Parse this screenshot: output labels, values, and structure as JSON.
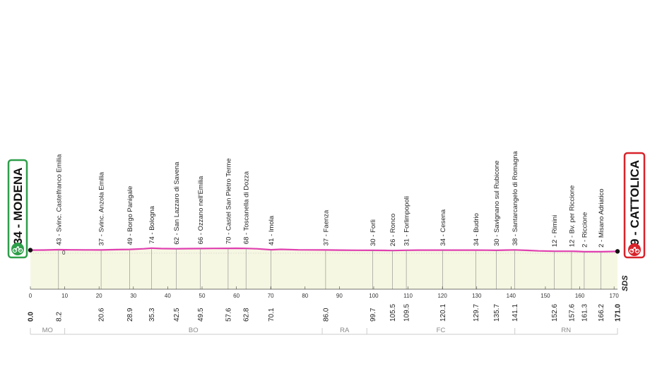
{
  "chart_data": {
    "type": "area",
    "xlim": [
      0,
      171
    ],
    "x_ticks": [
      0,
      10,
      20,
      30,
      40,
      50,
      60,
      70,
      80,
      90,
      100,
      110,
      120,
      130,
      140,
      150,
      160,
      170
    ],
    "x_tick_labels": [
      "0",
      "10",
      "20",
      "30",
      "40",
      "50",
      "60",
      "70",
      "80",
      "90",
      "100",
      "110",
      "120",
      "130",
      "140",
      "150",
      "160",
      "170"
    ],
    "y_label": "0",
    "start": {
      "label": "34 - MODENA",
      "km": 0.0,
      "km_label": "0.0"
    },
    "finish": {
      "label": "9 - CATTOLICA",
      "km": 171.0,
      "km_label": "171.0"
    },
    "logo": "SDS",
    "waypoints": [
      {
        "km": 8.2,
        "km_label": "8.2",
        "label": "43 - Svinc. Castelfranco Emilia"
      },
      {
        "km": 20.6,
        "km_label": "20.6",
        "label": "37 - Svinc. Anzola Emilia"
      },
      {
        "km": 28.9,
        "km_label": "28.9",
        "label": "49 - Borgo Panigale"
      },
      {
        "km": 35.3,
        "km_label": "35.3",
        "label": "74 - Bologna"
      },
      {
        "km": 42.5,
        "km_label": "42.5",
        "label": "62 - San Lazzaro di Savena"
      },
      {
        "km": 49.5,
        "km_label": "49.5",
        "label": "66 - Ozzano nell'Emilia"
      },
      {
        "km": 57.6,
        "km_label": "57.6",
        "label": "70 - Castel San Pietro Terme"
      },
      {
        "km": 62.8,
        "km_label": "62.8",
        "label": "68 - Toscanella di Dozza"
      },
      {
        "km": 70.1,
        "km_label": "70.1",
        "label": "41 - Imola"
      },
      {
        "km": 86.0,
        "km_label": "86.0",
        "label": "37 - Faenza"
      },
      {
        "km": 99.7,
        "km_label": "99.7",
        "label": "30 - Forlì"
      },
      {
        "km": 105.5,
        "km_label": "105.5",
        "label": "26 - Ronco"
      },
      {
        "km": 109.5,
        "km_label": "109.5",
        "label": "31 - Forlimpopoli"
      },
      {
        "km": 120.1,
        "km_label": "120.1",
        "label": "34 - Cesena"
      },
      {
        "km": 129.7,
        "km_label": "129.7",
        "label": "34 - Budrio"
      },
      {
        "km": 135.7,
        "km_label": "135.7",
        "label": "30 - Savignano sul Rubicone"
      },
      {
        "km": 141.1,
        "km_label": "141.1",
        "label": "38 - Santarcangelo di Romagna"
      },
      {
        "km": 152.6,
        "km_label": "152.6",
        "label": "12 - Rimini"
      },
      {
        "km": 157.6,
        "km_label": "157.6",
        "label": "12 - Bv. per Riccione"
      },
      {
        "km": 161.3,
        "km_label": "161.3",
        "label": "2 - Riccione"
      },
      {
        "km": 166.2,
        "km_label": "166.2",
        "label": "2 - Misano Adriatico"
      }
    ],
    "profile": [
      [
        0,
        34
      ],
      [
        4,
        36
      ],
      [
        8.2,
        43
      ],
      [
        12,
        40
      ],
      [
        16,
        38
      ],
      [
        20.6,
        37
      ],
      [
        25,
        44
      ],
      [
        28.9,
        49
      ],
      [
        33,
        62
      ],
      [
        35.3,
        74
      ],
      [
        38,
        66
      ],
      [
        42.5,
        62
      ],
      [
        46,
        64
      ],
      [
        49.5,
        66
      ],
      [
        53,
        68
      ],
      [
        57.6,
        70
      ],
      [
        60,
        72
      ],
      [
        62.8,
        68
      ],
      [
        66,
        62
      ],
      [
        70.1,
        41
      ],
      [
        73,
        50
      ],
      [
        78,
        40
      ],
      [
        82,
        38
      ],
      [
        86.0,
        37
      ],
      [
        90,
        34
      ],
      [
        95,
        32
      ],
      [
        99.7,
        30
      ],
      [
        103,
        28
      ],
      [
        105.5,
        26
      ],
      [
        109.5,
        31
      ],
      [
        113,
        34
      ],
      [
        117,
        35
      ],
      [
        120.1,
        34
      ],
      [
        125,
        34
      ],
      [
        129.7,
        34
      ],
      [
        133,
        33
      ],
      [
        135.7,
        30
      ],
      [
        138,
        34
      ],
      [
        141.1,
        38
      ],
      [
        145,
        28
      ],
      [
        148,
        18
      ],
      [
        152.6,
        12
      ],
      [
        155,
        12
      ],
      [
        157.6,
        12
      ],
      [
        159,
        8
      ],
      [
        161.3,
        2
      ],
      [
        164,
        2
      ],
      [
        166.2,
        2
      ],
      [
        169,
        5
      ],
      [
        171,
        9
      ]
    ],
    "provinces": [
      {
        "label": "MO",
        "from": 0,
        "to": 10
      },
      {
        "label": "BO",
        "from": 10,
        "to": 85
      },
      {
        "label": "RA",
        "from": 85,
        "to": 98
      },
      {
        "label": "FC",
        "from": 98,
        "to": 141.1
      },
      {
        "label": "RN",
        "from": 141.1,
        "to": 171
      }
    ],
    "colors": {
      "profile_line": "#e040b0",
      "profile_fill": "#f6f7e2",
      "start_badge": "#2e9e4a",
      "finish_badge": "#d8232a",
      "province_bar": "#cccccc"
    }
  }
}
